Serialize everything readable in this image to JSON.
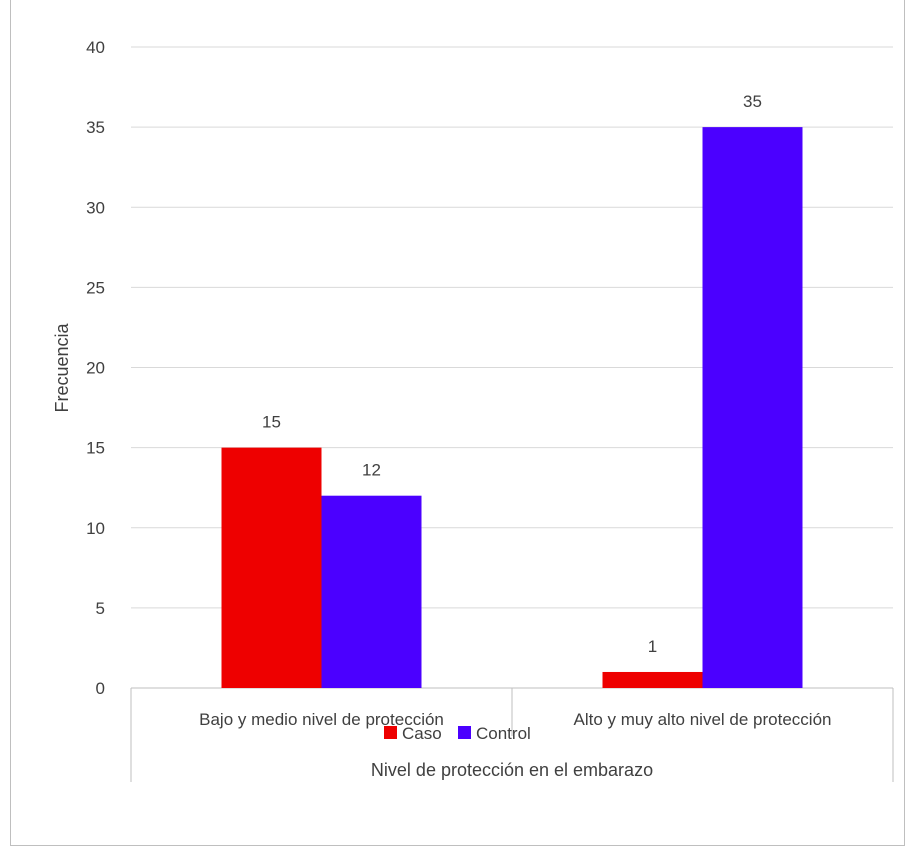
{
  "chart_data": {
    "type": "bar",
    "title": "",
    "xlabel": "Nivel de protección en el embarazo",
    "ylabel": "Frecuencia",
    "categories": [
      "Bajo y medio nivel de protección",
      "Alto y muy alto nivel de protección"
    ],
    "series": [
      {
        "name": "Caso",
        "values": [
          15,
          1
        ],
        "color": "#ee0000"
      },
      {
        "name": "Control",
        "values": [
          12,
          35
        ],
        "color": "#4b00ff"
      }
    ],
    "ylim": [
      0,
      40
    ],
    "yticks": [
      0,
      5,
      10,
      15,
      20,
      25,
      30,
      35,
      40
    ],
    "grid": true,
    "legend_position": "bottom",
    "data_labels": true
  }
}
